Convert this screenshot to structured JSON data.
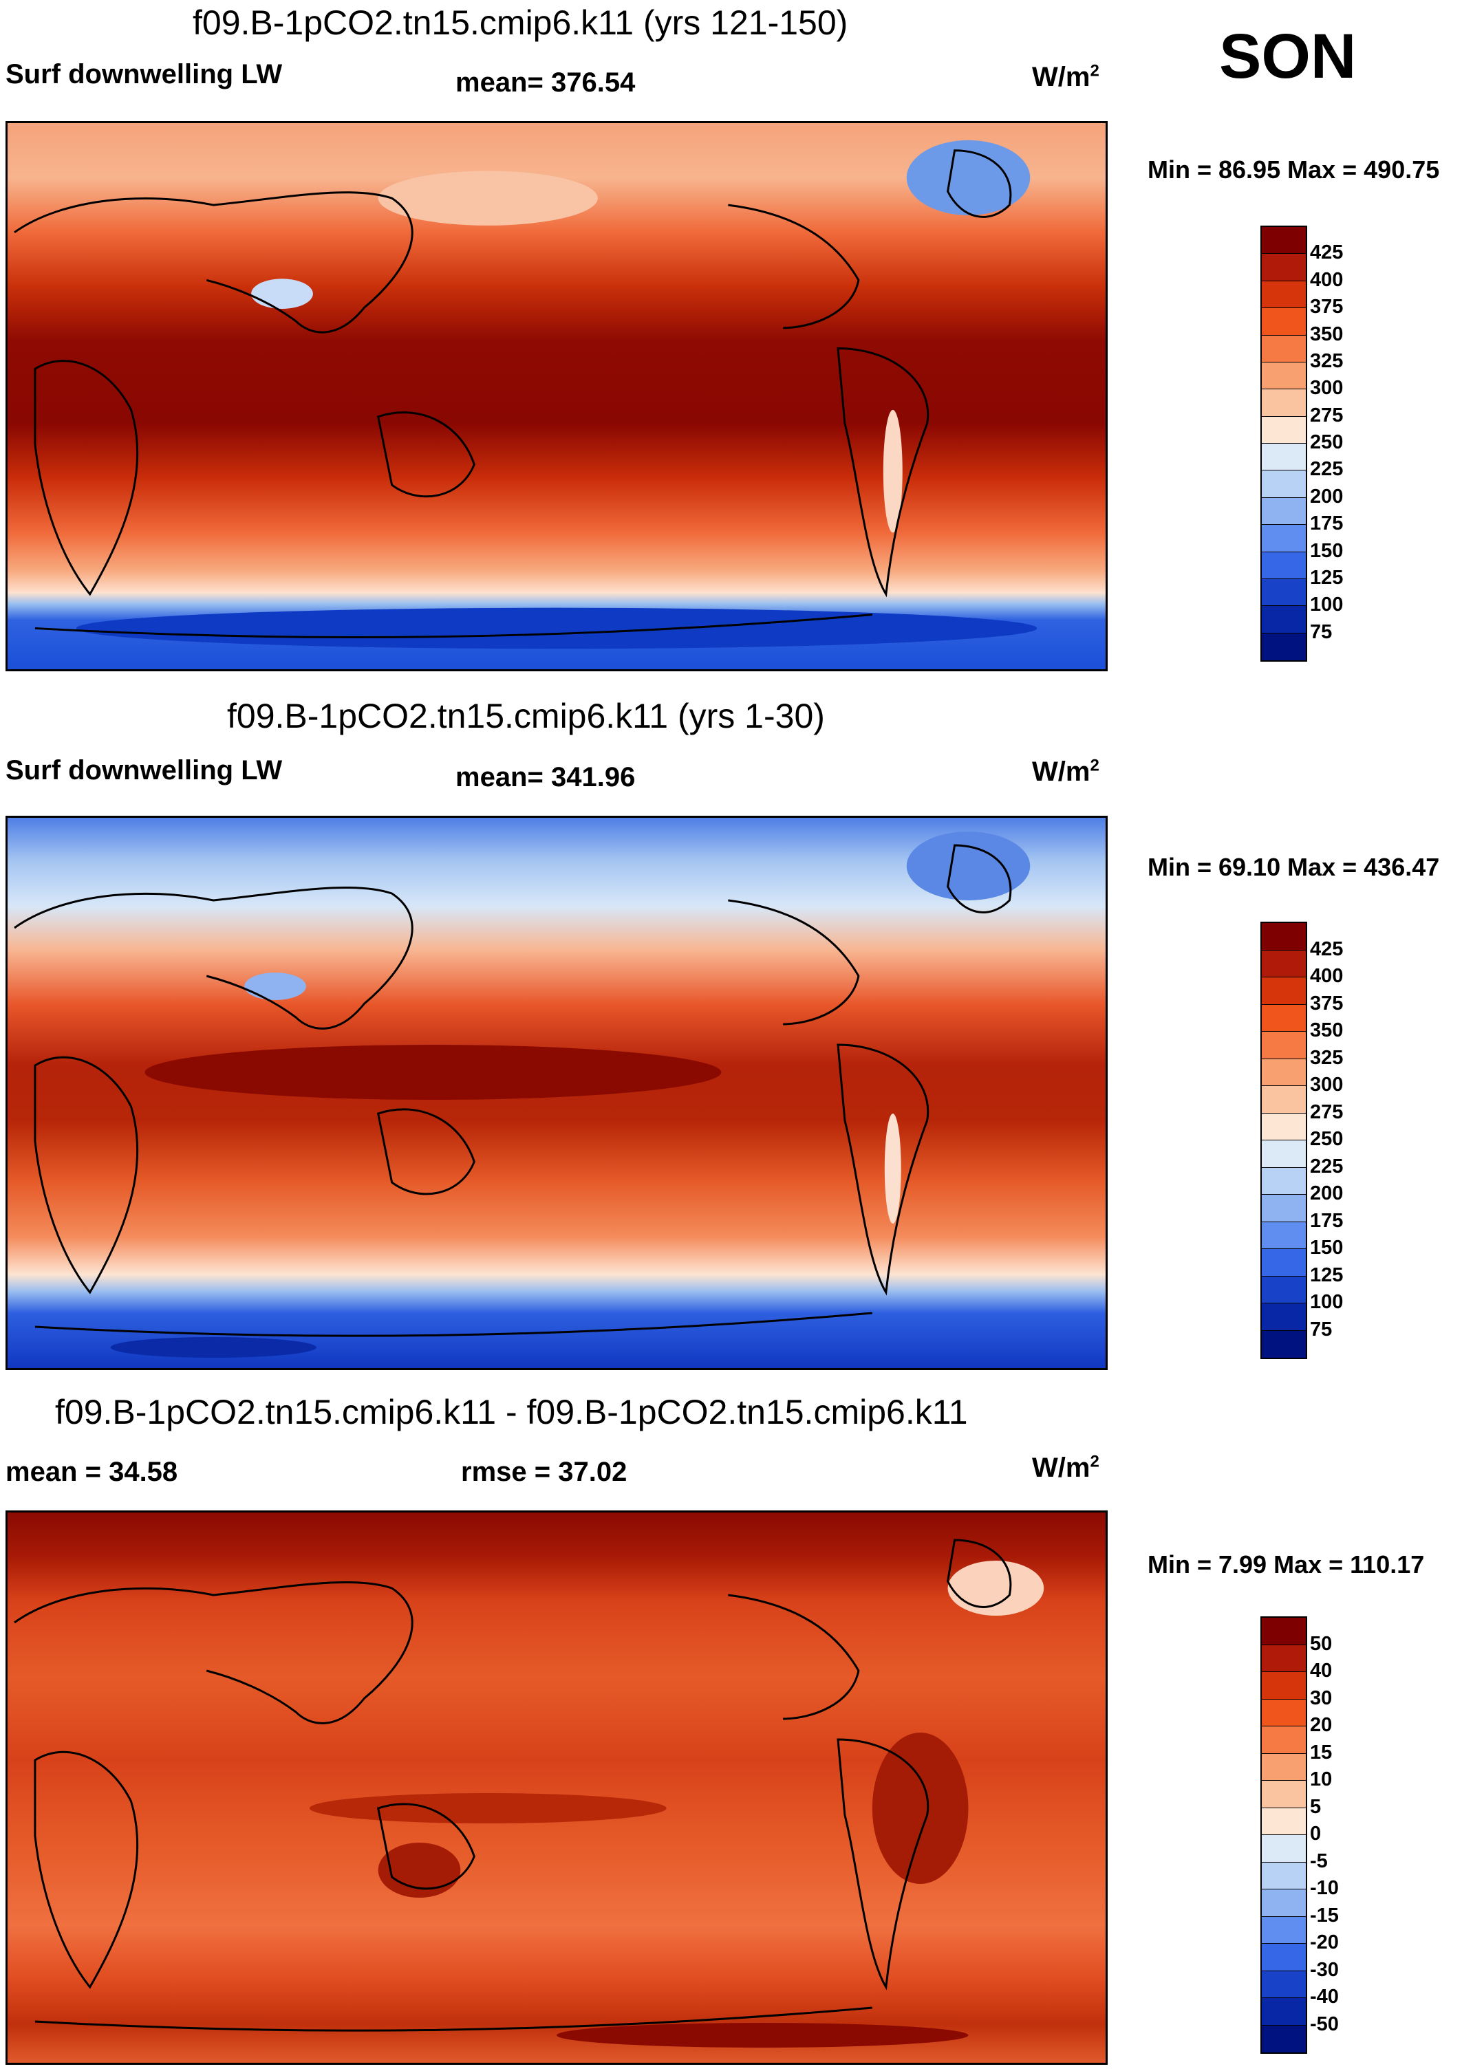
{
  "season": "SON",
  "units_main": "W/m",
  "units_sup": "2",
  "panels": [
    {
      "title": "f09.B-1pCO2.tn15.cmip6.k11 (yrs 121-150)",
      "left_label": "Surf downwelling LW",
      "center_label": "mean= 376.54",
      "min_max": "Min =  86.95 Max = 490.75"
    },
    {
      "title": "f09.B-1pCO2.tn15.cmip6.k11 (yrs 1-30)",
      "left_label": "Surf downwelling LW",
      "center_label": "mean= 341.96",
      "min_max": "Min =  69.10 Max = 436.47"
    },
    {
      "title": "f09.B-1pCO2.tn15.cmip6.k11 - f09.B-1pCO2.tn15.cmip6.k11",
      "left_label": "mean =  34.58",
      "center_label": "rmse =  37.02",
      "min_max": "Min =   7.99 Max = 110.17"
    }
  ],
  "colorbars": {
    "absolute": {
      "levels": [
        "425",
        "400",
        "375",
        "350",
        "325",
        "300",
        "275",
        "250",
        "225",
        "200",
        "175",
        "150",
        "125",
        "100",
        "75"
      ],
      "colors": [
        "#7f0000",
        "#b01a08",
        "#d6340a",
        "#f0561c",
        "#f57a44",
        "#f9a071",
        "#fbc4a0",
        "#fde6d4",
        "#dceaf8",
        "#b8d2f5",
        "#8fb3f0",
        "#5f8ef0",
        "#3567e6",
        "#1843c9",
        "#0827a6",
        "#001280"
      ]
    },
    "difference": {
      "levels": [
        "50",
        "40",
        "30",
        "20",
        "15",
        "10",
        "5",
        "0",
        "-5",
        "-10",
        "-15",
        "-20",
        "-30",
        "-40",
        "-50"
      ],
      "colors": [
        "#7f0000",
        "#b01a08",
        "#d6340a",
        "#f0561c",
        "#f57a44",
        "#f9a071",
        "#fbc4a0",
        "#fde6d4",
        "#dceaf8",
        "#b8d2f5",
        "#8fb3f0",
        "#5f8ef0",
        "#3567e6",
        "#1843c9",
        "#0827a6",
        "#001280"
      ]
    }
  }
}
